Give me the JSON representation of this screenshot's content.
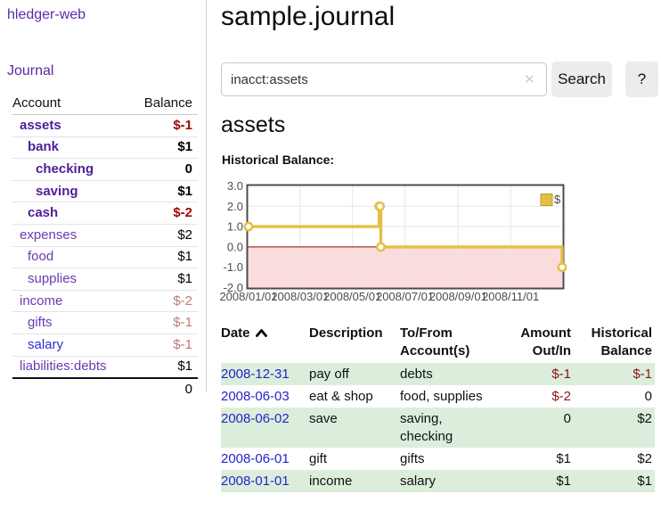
{
  "app": {
    "brand": "hledger-web"
  },
  "nav": {
    "journal": "Journal"
  },
  "sidebar": {
    "header": {
      "account": "Account",
      "balance": "Balance"
    },
    "accounts": [
      {
        "name": "assets",
        "balance": "$-1",
        "level": 1,
        "matched": true,
        "negative": true,
        "link_color": "purple"
      },
      {
        "name": "bank",
        "balance": "$1",
        "level": 2,
        "matched": true,
        "negative": false,
        "link_color": "purple"
      },
      {
        "name": "checking",
        "balance": "0",
        "level": 3,
        "matched": true,
        "negative": false,
        "link_color": "purple"
      },
      {
        "name": "saving",
        "balance": "$1",
        "level": 3,
        "matched": true,
        "negative": false,
        "link_color": "purple"
      },
      {
        "name": "cash",
        "balance": "$-2",
        "level": 2,
        "matched": true,
        "negative": true,
        "link_color": "purple"
      },
      {
        "name": "expenses",
        "balance": "$2",
        "level": 1,
        "matched": false,
        "negative": false,
        "link_color": "purple"
      },
      {
        "name": "food",
        "balance": "$1",
        "level": 2,
        "matched": false,
        "negative": false,
        "link_color": "purple"
      },
      {
        "name": "supplies",
        "balance": "$1",
        "level": 2,
        "matched": false,
        "negative": false,
        "link_color": "purple"
      },
      {
        "name": "income",
        "balance": "$-2",
        "level": 1,
        "matched": false,
        "negative": true,
        "link_color": "purple"
      },
      {
        "name": "gifts",
        "balance": "$-1",
        "level": 2,
        "matched": false,
        "negative": true,
        "link_color": "purple"
      },
      {
        "name": "salary",
        "balance": "$-1",
        "level": 2,
        "matched": false,
        "negative": true,
        "link_color": "blue"
      },
      {
        "name": "liabilities:debts",
        "balance": "$1",
        "level": 1,
        "matched": false,
        "negative": false,
        "link_color": "purple"
      }
    ],
    "total": "0"
  },
  "main": {
    "title": "sample.journal",
    "search": {
      "value": "inacct:assets",
      "clear_icon": "✕",
      "search_label": "Search",
      "help_label": "?"
    },
    "account_title": "assets",
    "section_label": "Historical Balance:"
  },
  "chart_data": {
    "type": "line",
    "step": true,
    "title": "Historical Balance:",
    "series": [
      {
        "name": "$",
        "color": "#e5bf45",
        "points": [
          [
            "2008-01-01",
            1
          ],
          [
            "2008-06-01",
            2
          ],
          [
            "2008-06-02",
            2
          ],
          [
            "2008-06-03",
            0
          ],
          [
            "2008-12-31",
            -1
          ]
        ]
      }
    ],
    "ylim": [
      -2,
      3
    ],
    "yticks": [
      "3.0",
      "2.0",
      "1.0",
      "0.0",
      "-1.0",
      "-2.0"
    ],
    "xticks": [
      "2008/01/01",
      "2008/03/01",
      "2008/05/01",
      "2008/07/01",
      "2008/09/01",
      "2008/11/01"
    ],
    "x_start": "2008-01-01",
    "x_range_days": 365,
    "grid": true,
    "negative_region_color": "#fbdcdc",
    "zero_line_color": "#a00000",
    "border_color": "#4c4c4c",
    "legend": {
      "label": "$",
      "position": "top-right"
    }
  },
  "register": {
    "columns": [
      "Date",
      "Description",
      "To/From Account(s)",
      "Amount Out/In",
      "Historical Balance"
    ],
    "rows": [
      {
        "date": "2008-12-31",
        "description": "pay off",
        "accounts": "debts",
        "amount": "$-1",
        "amount_negative": true,
        "balance": "$-1",
        "balance_negative": true
      },
      {
        "date": "2008-06-03",
        "description": "eat & shop",
        "accounts": "food, supplies",
        "amount": "$-2",
        "amount_negative": true,
        "balance": "0",
        "balance_negative": false
      },
      {
        "date": "2008-06-02",
        "description": "save",
        "accounts": "saving, checking",
        "amount": "0",
        "amount_negative": false,
        "balance": "$2",
        "balance_negative": false
      },
      {
        "date": "2008-06-01",
        "description": "gift",
        "accounts": "gifts",
        "amount": "$1",
        "amount_negative": false,
        "balance": "$2",
        "balance_negative": false
      },
      {
        "date": "2008-01-01",
        "description": "income",
        "accounts": "salary",
        "amount": "$1",
        "amount_negative": false,
        "balance": "$1",
        "balance_negative": false
      }
    ]
  }
}
